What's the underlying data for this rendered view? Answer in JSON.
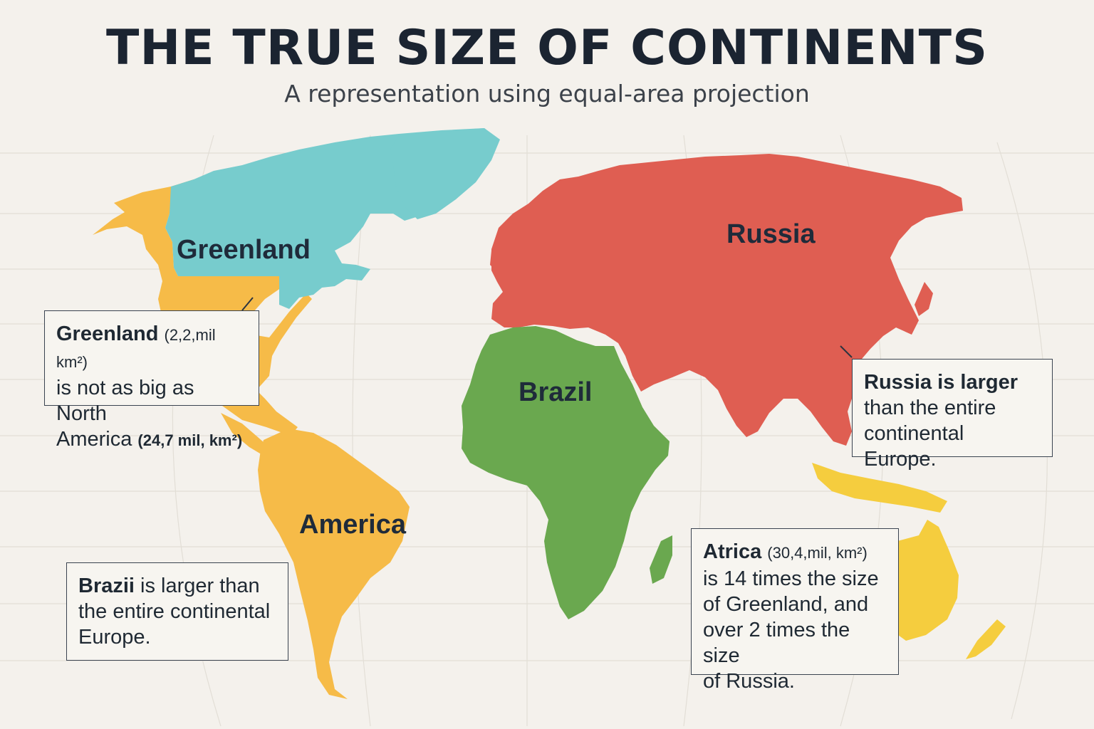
{
  "header": {
    "title": "THE TRUE SIZE OF CONTINENTS",
    "subtitle": "A representation using equal-area projection"
  },
  "map_labels": {
    "greenland": "Greenland",
    "russia": "Russia",
    "brazil": "Brazil",
    "america": "America"
  },
  "notes": {
    "greenland": {
      "bold": "Greenland",
      "paren": "(2,2,mil km²)",
      "line2": "is not as big as North",
      "line3_a": "America",
      "line3_b": "(24,7 mil, km²)"
    },
    "brazil": {
      "bold": "Brazii",
      "line1_rest": "is larger than",
      "line2": "the entire continental",
      "line3": "Europe."
    },
    "russia": {
      "bold": "Russia is larger",
      "line2": "than the entire",
      "line3": "continental Europe."
    },
    "africa": {
      "bold": "Atrica",
      "paren": "(30,4,mil, km²)",
      "line2": "is 14 times the size",
      "line3": "of Greenland, and",
      "line4": "over 2 times the size",
      "line5": "of Russia."
    }
  },
  "colors": {
    "background": "#f4f1ec",
    "greenland_fill": "#77cccd",
    "americas_fill": "#f6bb48",
    "eurasia_fill": "#df5e52",
    "africa_fill": "#6aa84f",
    "australia_fill": "#f5cd3e"
  }
}
